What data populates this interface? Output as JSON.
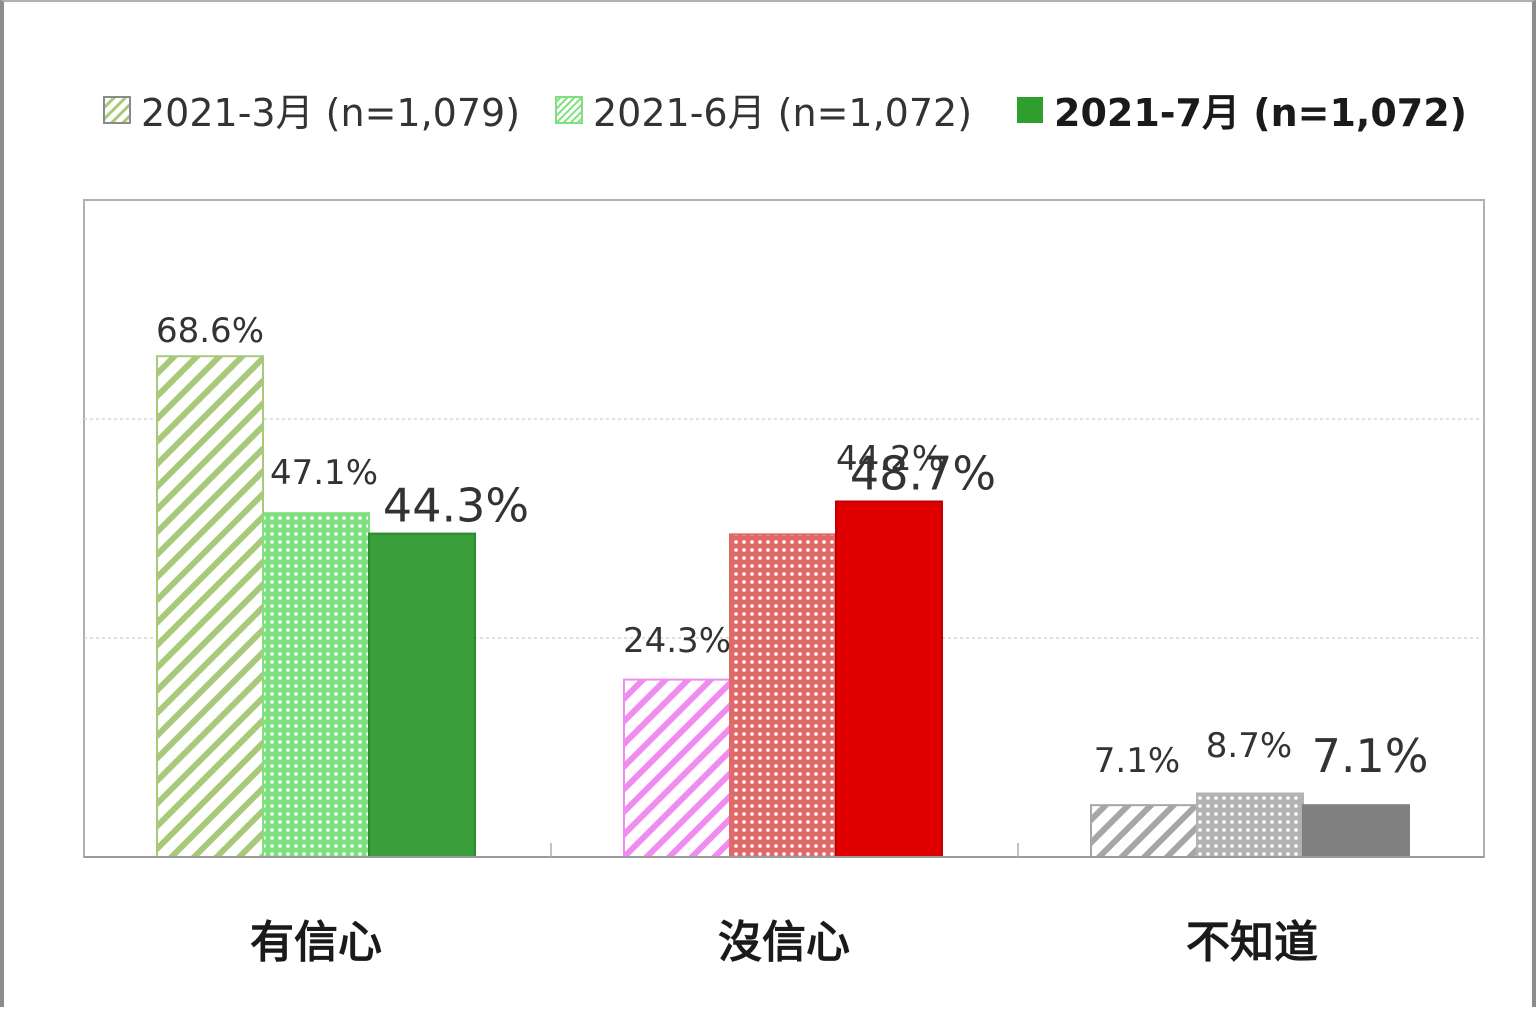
{
  "chart_data": {
    "type": "bar",
    "categories": [
      "有信心",
      "沒信心",
      "不知道"
    ],
    "series": [
      {
        "name": "2021-3月 (n=1,079)",
        "values": [
          68.6,
          24.3,
          7.1
        ]
      },
      {
        "name": "2021-6月 (n=1,072)",
        "values": [
          47.1,
          44.2,
          8.7
        ]
      },
      {
        "name": "2021-7月 (n=1,072)",
        "values": [
          44.3,
          48.7,
          7.1
        ]
      }
    ],
    "value_labels": [
      [
        "68.6%",
        "24.3%",
        "7.1%"
      ],
      [
        "47.1%",
        "44.2%",
        "8.7%"
      ],
      [
        "44.3%",
        "48.7%",
        "7.1%"
      ]
    ],
    "ylim": [
      0,
      90
    ],
    "grid": true,
    "legend_position": "top",
    "colors": {
      "有信心": [
        "#a9c97a",
        "#7fe07f",
        "#3a9e3a"
      ],
      "沒信心": [
        "#f08cf0",
        "#e06a6a",
        "#e00000"
      ],
      "不知道": [
        "#a6a6a6",
        "#b3b3b3",
        "#808080"
      ],
      "label_highlight": [
        "#3a7d2a",
        "#e02020",
        "#555555"
      ]
    }
  }
}
